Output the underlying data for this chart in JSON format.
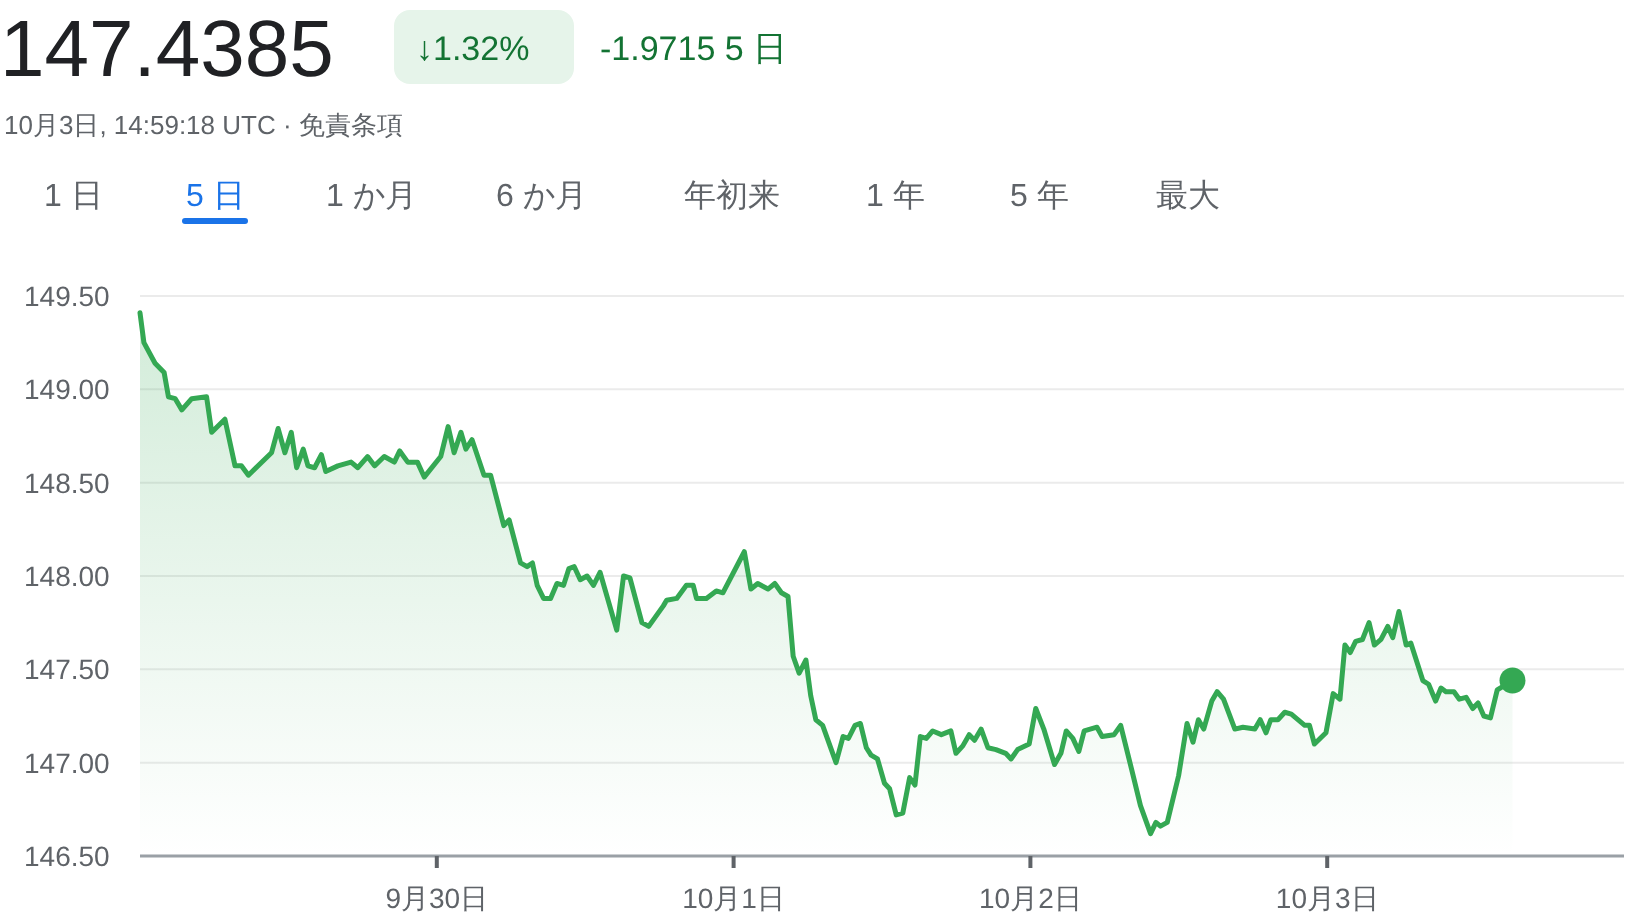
{
  "chart_data": {
    "type": "area",
    "title": "147.4385",
    "annotations": [
      "↓1.32%",
      "-1.9715 5 日",
      "10月3日, 14:59:18 UTC · 免責条項",
      "1 日",
      "5 日",
      "1 か月",
      "6 か月",
      "年初来",
      "1 年",
      "5 年",
      "最大"
    ],
    "xlim": [
      "--09-29",
      "--10-04"
    ],
    "xticks": [
      {
        "value": "--09-30",
        "label": "9月30日"
      },
      {
        "value": "--10-01",
        "label": "10月1日"
      },
      {
        "value": "--10-02",
        "label": "10月2日"
      },
      {
        "value": "--10-03",
        "label": "10月3日"
      }
    ],
    "ylim": [
      146.5,
      149.5
    ],
    "yticks": [
      {
        "value": 146.5,
        "label": "146.50"
      },
      {
        "value": 147,
        "label": "147.00"
      },
      {
        "value": 147.5,
        "label": "147.50"
      },
      {
        "value": 148,
        "label": "148.00"
      },
      {
        "value": 148.5,
        "label": "148.50"
      },
      {
        "value": 149,
        "label": "149.00"
      },
      {
        "value": 149.5,
        "label": "149.50"
      }
    ],
    "grid": "y",
    "series": [
      {
        "color": "#34a853",
        "x": [
          "--09-29T00:00",
          "--09-29T00:19",
          "--09-29T01:13",
          "--09-29T01:57",
          "--09-29T02:18",
          "--09-29T02:51",
          "--09-29T03:23",
          "--09-29T04:11",
          "--09-29T05:23",
          "--09-29T05:48",
          "--09-29T06:52",
          "--09-29T07:41",
          "--09-29T08:12",
          "--09-29T08:46",
          "--09-29T10:38",
          "--09-29T11:10",
          "--09-29T11:43",
          "--09-29T12:14",
          "--09-29T12:40",
          "--09-29T13:12",
          "--09-29T13:35",
          "--09-29T14:07",
          "--09-29T14:40",
          "--09-29T15:01",
          "--09-29T16:00",
          "--09-29T17:04",
          "--09-29T17:37",
          "--09-29T18:24",
          "--09-29T18:58",
          "--09-29T19:45",
          "--09-29T20:34",
          "--09-29T21:00",
          "--09-29T21:39",
          "--09-29T22:26",
          "--09-29T22:59",
          "--09-30T00:19",
          "--09-30T00:55",
          "--09-30T01:24",
          "--09-30T01:57",
          "--09-30T02:21",
          "--09-30T02:51",
          "--09-30T03:49",
          "--09-30T04:21",
          "--09-30T05:25",
          "--09-30T05:51",
          "--09-30T06:46",
          "--09-30T07:18",
          "--09-30T07:44",
          "--09-30T08:07",
          "--09-30T08:38",
          "--09-30T09:12",
          "--09-30T09:43",
          "--09-30T10:15",
          "--09-30T10:41",
          "--09-30T11:07",
          "--09-30T11:36",
          "--09-30T12:09",
          "--09-30T12:40",
          "--09-30T13:12",
          "--09-30T14:33",
          "--09-30T15:06",
          "--09-30T15:37",
          "--09-30T16:35",
          "--09-30T17:08",
          "--09-30T18:19",
          "--09-30T18:35",
          "--09-30T19:24",
          "--09-30T20:11",
          "--09-30T20:44",
          "--09-30T21:00",
          "--09-30T21:48",
          "--09-30T22:36",
          "--09-30T23:08",
          "--10-01T00:52",
          "--10-01T01:24",
          "--10-01T01:57",
          "--10-01T02:47",
          "--10-01T03:20",
          "--10-01T03:52",
          "--10-01T04:24",
          "--10-01T04:49",
          "--10-01T05:18",
          "--10-01T05:51",
          "--10-01T06:14",
          "--10-01T06:39",
          "--10-01T07:12",
          "--10-01T08:17",
          "--10-01T08:51",
          "--10-01T09:17",
          "--10-01T09:49",
          "--10-01T10:15",
          "--10-01T10:44",
          "--10-01T11:07",
          "--10-01T11:38",
          "--10-01T12:12",
          "--10-01T12:37",
          "--10-01T13:09",
          "--10-01T13:41",
          "--10-01T14:14",
          "--10-01T14:40",
          "--10-01T15:06",
          "--10-01T15:35",
          "--10-01T16:06",
          "--10-01T16:48",
          "--10-01T17:34",
          "--10-01T17:59",
          "--10-01T18:32",
          "--10-01T19:03",
          "--10-01T19:29",
          "--10-01T20:01",
          "--10-01T20:34",
          "--10-01T21:13",
          "--10-01T22:00",
          "--10-01T22:26",
          "--10-01T22:58",
          "--10-01T23:54",
          "--10-02T00:26",
          "--10-02T01:05",
          "--10-02T01:57",
          "--10-02T02:28",
          "--10-02T02:54",
          "--10-02T03:26",
          "--10-02T03:55",
          "--10-02T04:21",
          "--10-02T05:23",
          "--10-02T05:48",
          "--10-02T06:46",
          "--10-02T07:18",
          "--10-02T08:12",
          "--10-02T08:54",
          "--10-02T09:43",
          "--10-02T10:09",
          "--10-02T10:31",
          "--10-02T11:04",
          "--10-02T11:59",
          "--10-02T12:40",
          "--10-02T13:09",
          "--10-02T13:35",
          "--10-02T14:01",
          "--10-02T14:40",
          "--10-02T15:06",
          "--10-02T15:37",
          "--10-02T16:32",
          "--10-02T17:11",
          "--10-02T18:09",
          "--10-02T18:35",
          "--10-02T19:03",
          "--10-02T19:26",
          "--10-02T20:01",
          "--10-02T20:34",
          "--10-02T21:06",
          "--10-02T22:11",
          "--10-02T22:34",
          "--10-02T22:58",
          "--10-02T23:54",
          "--10-03T00:29",
          "--10-03T01:02",
          "--10-03T01:26",
          "--10-03T01:52",
          "--10-03T02:18",
          "--10-03T02:51",
          "--10-03T03:23",
          "--10-03T03:49",
          "--10-03T04:21",
          "--10-03T04:54",
          "--10-03T05:18",
          "--10-03T05:48",
          "--10-03T06:23",
          "--10-03T06:46",
          "--10-03T07:44",
          "--10-03T08:12",
          "--10-03T08:46",
          "--10-03T09:12",
          "--10-03T09:36",
          "--10-03T10:15",
          "--10-03T10:41",
          "--10-03T11:14",
          "--10-03T11:46",
          "--10-03T12:12",
          "--10-03T12:40",
          "--10-03T13:12",
          "--10-03T13:45",
          "--10-03T14:59"
        ],
        "values": [
          149.41,
          149.25,
          149.14,
          149.09,
          148.96,
          148.95,
          148.89,
          148.95,
          148.96,
          148.77,
          148.84,
          148.59,
          148.59,
          148.54,
          148.66,
          148.79,
          148.66,
          148.77,
          148.58,
          148.68,
          148.59,
          148.58,
          148.65,
          148.56,
          148.59,
          148.61,
          148.58,
          148.64,
          148.59,
          148.64,
          148.61,
          148.67,
          148.61,
          148.61,
          148.53,
          148.64,
          148.8,
          148.66,
          148.77,
          148.68,
          148.73,
          148.54,
          148.54,
          148.27,
          148.3,
          148.07,
          148.05,
          148.07,
          147.95,
          147.88,
          147.88,
          147.96,
          147.95,
          148.04,
          148.05,
          147.98,
          148.0,
          147.95,
          148.02,
          147.71,
          148.0,
          147.99,
          147.75,
          147.73,
          147.84,
          147.87,
          147.88,
          147.95,
          147.95,
          147.88,
          147.88,
          147.92,
          147.91,
          148.13,
          147.93,
          147.96,
          147.93,
          147.96,
          147.91,
          147.89,
          147.57,
          147.48,
          147.55,
          147.36,
          147.23,
          147.2,
          147.0,
          147.14,
          147.13,
          147.2,
          147.21,
          147.08,
          147.04,
          147.02,
          146.89,
          146.86,
          146.72,
          146.73,
          146.92,
          146.88,
          147.14,
          147.13,
          147.17,
          147.15,
          147.17,
          147.05,
          147.09,
          147.15,
          147.12,
          147.18,
          147.08,
          147.07,
          147.05,
          147.02,
          147.07,
          147.1,
          147.29,
          147.18,
          146.99,
          147.05,
          147.17,
          147.13,
          147.06,
          147.17,
          147.19,
          147.14,
          147.15,
          147.2,
          146.96,
          146.77,
          146.62,
          146.68,
          146.66,
          146.68,
          146.93,
          147.21,
          147.11,
          147.23,
          147.18,
          147.33,
          147.38,
          147.34,
          147.18,
          147.19,
          147.18,
          147.23,
          147.16,
          147.23,
          147.23,
          147.27,
          147.26,
          147.2,
          147.2,
          147.1,
          147.16,
          147.37,
          147.34,
          147.63,
          147.59,
          147.65,
          147.66,
          147.75,
          147.63,
          147.66,
          147.73,
          147.67,
          147.81,
          147.63,
          147.64,
          147.44,
          147.42,
          147.33,
          147.4,
          147.38,
          147.38,
          147.34,
          147.35,
          147.29,
          147.32,
          147.25,
          147.24,
          147.39,
          147.44
        ]
      },
      {
        "type": "scatter",
        "marker": "circle",
        "color": "#34a853",
        "x": [
          "--10-03T14:59"
        ],
        "values": [
          147.44
        ]
      }
    ]
  }
}
